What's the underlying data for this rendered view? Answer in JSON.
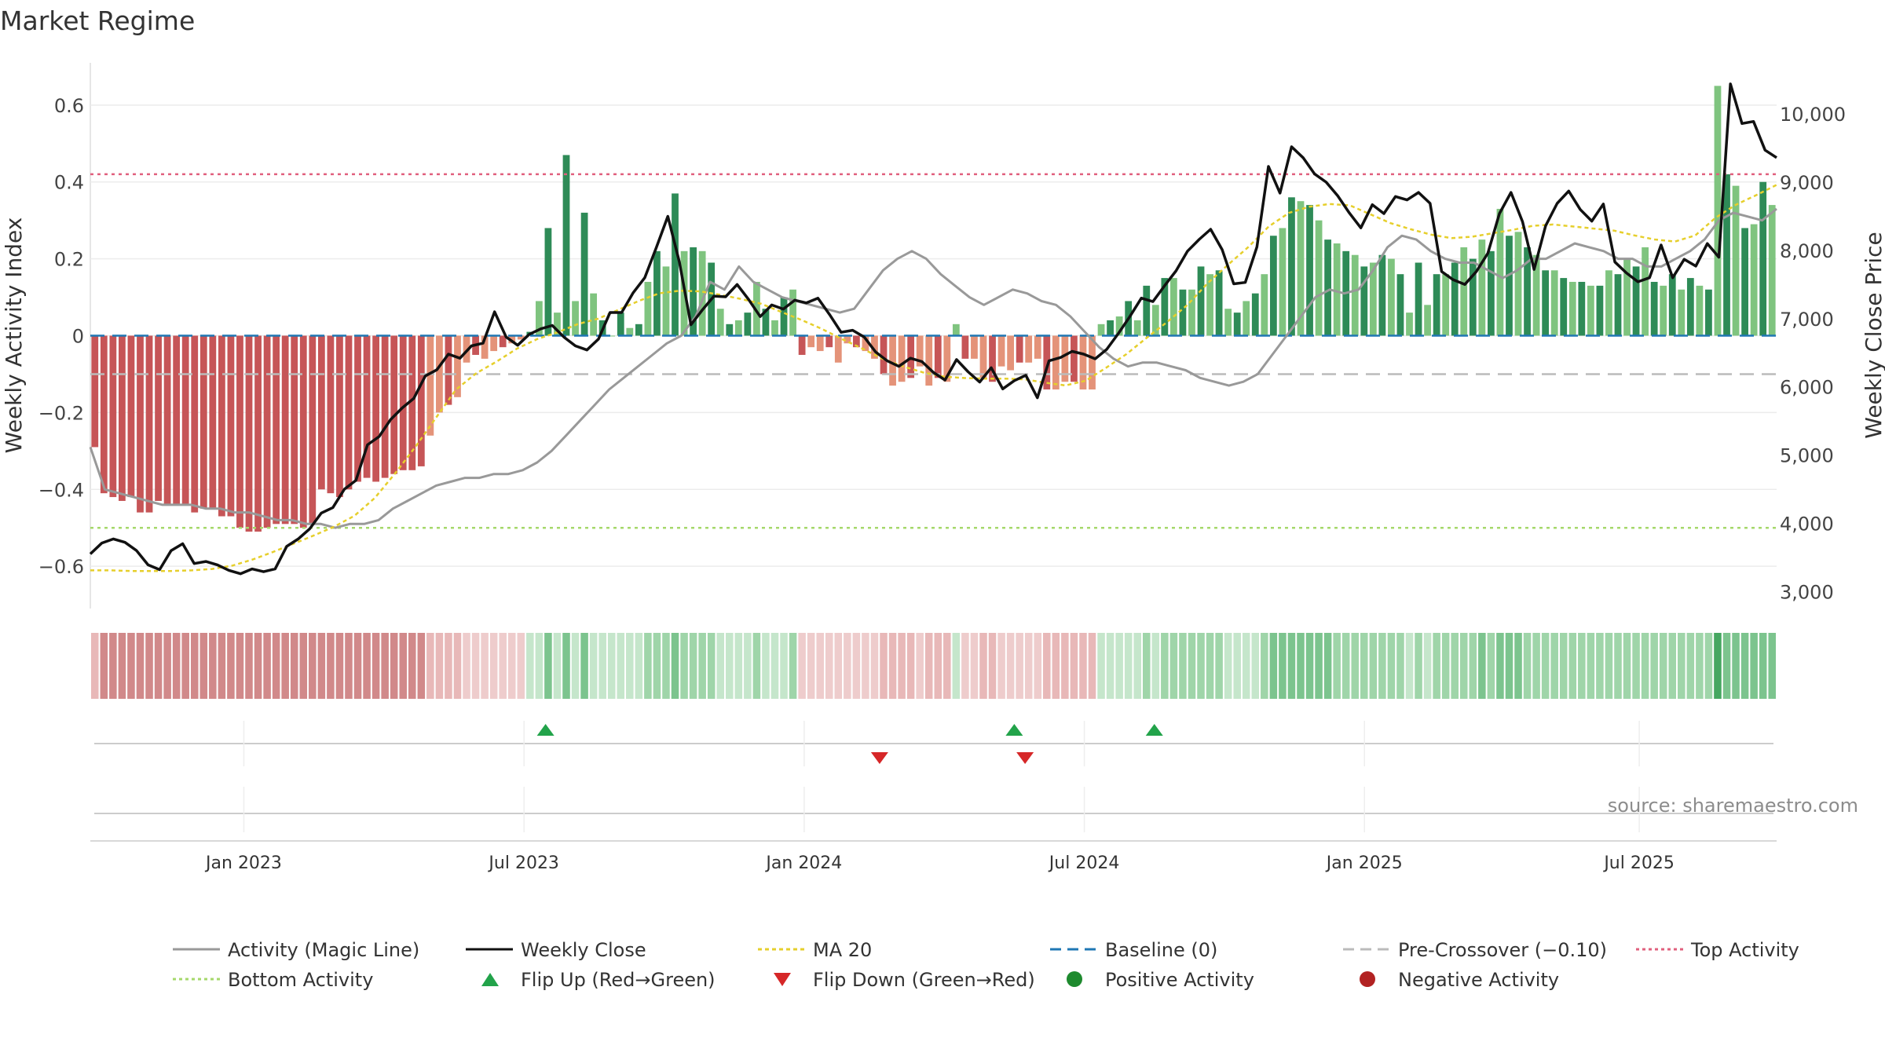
{
  "chart_data": {
    "type": "bar",
    "title": "Market Regime",
    "source": "source: sharemaestro.com",
    "y_left_label": "Weekly Activity Index",
    "y_right_label": "Weekly Close Price",
    "y_left_ticks": [
      0.6,
      0.4,
      0.2,
      0,
      -0.2,
      -0.4,
      -0.6
    ],
    "y_left_tick_labels": [
      "0.6",
      "0.4",
      "0.2",
      "0",
      "−0.2",
      "−0.4",
      "−0.6"
    ],
    "y_left_range": [
      -0.71,
      0.71
    ],
    "y_right_ticks": [
      10000,
      9000,
      8000,
      7000,
      6000,
      5000,
      4000,
      3000
    ],
    "y_right_tick_labels": [
      "10,000",
      "9,000",
      "8,000",
      "7,000",
      "6,000",
      "5,000",
      "4,000",
      "3,000"
    ],
    "y_right_range": [
      2750,
      10750
    ],
    "x_ticks": [
      {
        "week": 28,
        "label": "Jan 2023"
      },
      {
        "week": 80,
        "label": "Jul 2023"
      },
      {
        "week": 132,
        "label": "Jan 2024"
      },
      {
        "week": 184,
        "label": "Jul 2024"
      },
      {
        "week": 236,
        "label": "Jan 2025"
      },
      {
        "week": 287,
        "label": "Jul 2025"
      }
    ],
    "weeks": 313,
    "reference_lines": {
      "top_activity": 0.42,
      "bottom_activity": -0.5,
      "baseline": 0,
      "pre_crossover": -0.1
    },
    "activity_index": [
      -0.29,
      -0.41,
      -0.42,
      -0.43,
      -0.42,
      -0.46,
      -0.46,
      -0.43,
      -0.44,
      -0.44,
      -0.44,
      -0.46,
      -0.45,
      -0.45,
      -0.47,
      -0.47,
      -0.5,
      -0.51,
      -0.51,
      -0.5,
      -0.49,
      -0.49,
      -0.49,
      -0.5,
      -0.49,
      -0.4,
      -0.41,
      -0.42,
      -0.4,
      -0.38,
      -0.37,
      -0.38,
      -0.37,
      -0.36,
      -0.35,
      -0.35,
      -0.34,
      -0.26,
      -0.2,
      -0.18,
      -0.16,
      -0.07,
      -0.05,
      -0.06,
      -0.04,
      -0.03,
      -0.02,
      -0.01,
      0.01,
      0.09,
      0.28,
      0.06,
      0.47,
      0.09,
      0.32,
      0.11,
      0.04,
      0.0,
      0.06,
      0.02,
      0.03,
      0.14,
      0.22,
      0.18,
      0.37,
      0.22,
      0.23,
      0.22,
      0.19,
      0.07,
      0.03,
      0.04,
      0.06,
      0.14,
      0.07,
      0.04,
      0.1,
      0.12,
      -0.05,
      -0.03,
      -0.04,
      -0.03,
      -0.07,
      -0.02,
      -0.03,
      -0.04,
      -0.06,
      -0.1,
      -0.13,
      -0.12,
      -0.11,
      -0.08,
      -0.13,
      -0.11,
      -0.12,
      0.03,
      -0.06,
      -0.06,
      -0.11,
      -0.12,
      -0.08,
      -0.09,
      -0.07,
      -0.07,
      -0.06,
      -0.14,
      -0.14,
      -0.12,
      -0.12,
      -0.14,
      -0.14,
      0.03,
      0.04,
      0.05,
      0.09,
      0.04,
      0.13,
      0.08,
      0.15,
      0.15,
      0.12,
      0.12,
      0.18,
      0.16,
      0.17,
      0.07,
      0.06,
      0.09,
      0.11,
      0.16,
      0.26,
      0.28,
      0.36,
      0.35,
      0.34,
      0.3,
      0.25,
      0.24,
      0.22,
      0.21,
      0.18,
      0.19,
      0.21,
      0.2,
      0.16,
      0.06,
      0.19,
      0.08,
      0.16,
      0.16,
      0.19,
      0.23,
      0.2,
      0.25,
      0.22,
      0.33,
      0.26,
      0.27,
      0.23,
      0.21,
      0.17,
      0.17,
      0.15,
      0.14,
      0.14,
      0.13,
      0.13,
      0.17,
      0.16,
      0.2,
      0.18,
      0.23,
      0.14,
      0.13,
      0.16,
      0.12,
      0.15,
      0.13,
      0.12,
      0.65,
      0.42,
      0.39,
      0.28,
      0.29,
      0.4,
      0.34
    ],
    "magic_line": [
      -0.29,
      -0.4,
      -0.41,
      -0.42,
      -0.43,
      -0.44,
      -0.44,
      -0.44,
      -0.45,
      -0.45,
      -0.46,
      -0.46,
      -0.47,
      -0.48,
      -0.48,
      -0.49,
      -0.49,
      -0.5,
      -0.49,
      -0.49,
      -0.48,
      -0.45,
      -0.43,
      -0.41,
      -0.39,
      -0.38,
      -0.37,
      -0.37,
      -0.36,
      -0.36,
      -0.35,
      -0.33,
      -0.3,
      -0.26,
      -0.22,
      -0.18,
      -0.14,
      -0.11,
      -0.08,
      -0.05,
      -0.02,
      0.0,
      0.05,
      0.14,
      0.12,
      0.18,
      0.14,
      0.12,
      0.1,
      0.09,
      0.08,
      0.07,
      0.06,
      0.07,
      0.12,
      0.17,
      0.2,
      0.22,
      0.2,
      0.16,
      0.13,
      0.1,
      0.08,
      0.1,
      0.12,
      0.11,
      0.09,
      0.08,
      0.05,
      0.01,
      -0.03,
      -0.06,
      -0.08,
      -0.07,
      -0.07,
      -0.08,
      -0.09,
      -0.11,
      -0.12,
      -0.13,
      -0.12,
      -0.1,
      -0.05,
      0.0,
      0.05,
      0.1,
      0.12,
      0.11,
      0.12,
      0.17,
      0.23,
      0.26,
      0.25,
      0.22,
      0.2,
      0.19,
      0.19,
      0.17,
      0.15,
      0.17,
      0.2,
      0.2,
      0.22,
      0.24,
      0.23,
      0.22,
      0.2,
      0.2,
      0.18,
      0.18,
      0.2,
      0.22,
      0.25,
      0.3,
      0.32,
      0.31,
      0.3,
      0.33
    ],
    "weekly_close": [
      3550,
      3710,
      3770,
      3720,
      3600,
      3390,
      3320,
      3600,
      3700,
      3410,
      3440,
      3390,
      3310,
      3260,
      3330,
      3290,
      3330,
      3660,
      3770,
      3920,
      4150,
      4230,
      4500,
      4630,
      5150,
      5270,
      5520,
      5690,
      5830,
      6160,
      6250,
      6480,
      6420,
      6600,
      6640,
      7100,
      6730,
      6610,
      6770,
      6850,
      6900,
      6730,
      6600,
      6540,
      6700,
      7090,
      7090,
      7380,
      7600,
      8040,
      8500,
      7830,
      6910,
      7130,
      7330,
      7320,
      7500,
      7280,
      7030,
      7200,
      7140,
      7270,
      7230,
      7300,
      7060,
      6800,
      6830,
      6730,
      6510,
      6380,
      6300,
      6420,
      6370,
      6210,
      6100,
      6400,
      6220,
      6070,
      6280,
      5970,
      6090,
      6170,
      5840,
      6380,
      6430,
      6520,
      6480,
      6410,
      6550,
      6780,
      7030,
      7300,
      7250,
      7480,
      7700,
      7990,
      8160,
      8310,
      8010,
      7510,
      7530,
      8050,
      9230,
      8840,
      9520,
      9360,
      9120,
      9000,
      8800,
      8550,
      8330,
      8670,
      8540,
      8790,
      8740,
      8850,
      8690,
      7690,
      7570,
      7500,
      7690,
      7960,
      8540,
      8850,
      8420,
      7720,
      8360,
      8690,
      8870,
      8600,
      8430,
      8680,
      7830,
      7670,
      7540,
      7600,
      8080,
      7600,
      7870,
      7770,
      8100,
      7900,
      10440,
      9860,
      9890,
      9470,
      9360
    ],
    "ma20": [
      3310,
      3310,
      3300,
      3300,
      3300,
      3310,
      3330,
      3380,
      3470,
      3580,
      3700,
      3820,
      3950,
      4110,
      4370,
      4730,
      5120,
      5540,
      5960,
      6200,
      6370,
      6560,
      6700,
      6800,
      6920,
      7000,
      7130,
      7260,
      7370,
      7410,
      7400,
      7350,
      7290,
      7220,
      7100,
      6980,
      6850,
      6700,
      6560,
      6410,
      6300,
      6210,
      6150,
      6130,
      6120,
      6120,
      6110,
      6060,
      6020,
      6090,
      6280,
      6480,
      6720,
      6950,
      7200,
      7520,
      7790,
      8050,
      8350,
      8550,
      8640,
      8680,
      8660,
      8530,
      8400,
      8310,
      8230,
      8180,
      8200,
      8250,
      8300,
      8360,
      8380,
      8350,
      8320,
      8290,
      8220,
      8160,
      8130,
      8220,
      8480,
      8670,
      8810,
      8960
    ]
  },
  "regime_strip_label": "",
  "flips": {
    "up_weeks": [
      84,
      171,
      197
    ],
    "down_weeks": [
      146,
      173
    ]
  },
  "legend": {
    "magic_line": "Activity (Magic Line)",
    "weekly_close": "Weekly Close",
    "ma20": "MA 20",
    "baseline": "Baseline (0)",
    "pre_crossover": "Pre-Crossover (−0.10)",
    "top_activity": "Top Activity",
    "bottom_activity": "Bottom Activity",
    "flip_up": "Flip Up (Red→Green)",
    "flip_down": "Flip Down (Green→Red)",
    "positive": "Positive Activity",
    "negative": "Negative Activity"
  },
  "colors": {
    "dark_red": "#c65557",
    "light_red": "#e49379",
    "dark_green": "#2e8b57",
    "light_green": "#7fc47f",
    "magic_line": "#999999",
    "close": "#111111",
    "ma20": "#e6cf2c",
    "baseline": "#1f77b4",
    "pre_crossover": "#bbbbbb",
    "top_activity": "#e0607e",
    "bottom_activity": "#a6d86b",
    "flip_up": "#22a34a",
    "flip_down": "#d62728",
    "positive_dot": "#1e8a2e",
    "negative_dot": "#b22222"
  }
}
